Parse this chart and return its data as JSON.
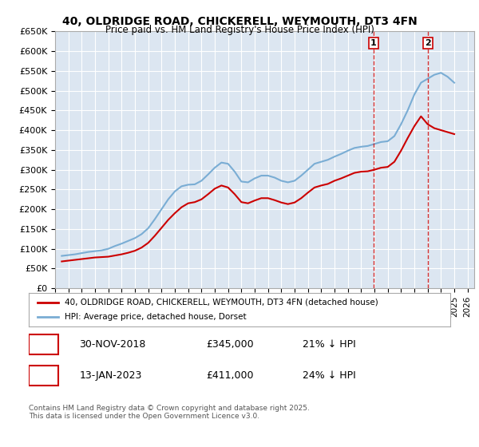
{
  "title": "40, OLDRIDGE ROAD, CHICKERELL, WEYMOUTH, DT3 4FN",
  "subtitle": "Price paid vs. HM Land Registry's House Price Index (HPI)",
  "ylabel": "",
  "background_color": "#ffffff",
  "plot_bg_color": "#dce6f1",
  "grid_color": "#ffffff",
  "hpi_color": "#7aadd4",
  "price_color": "#cc0000",
  "marker_line_color": "#cc0000",
  "ylim": [
    0,
    650000
  ],
  "yticks": [
    0,
    50000,
    100000,
    150000,
    200000,
    250000,
    300000,
    350000,
    400000,
    450000,
    500000,
    550000,
    600000,
    650000
  ],
  "ytick_labels": [
    "£0",
    "£50K",
    "£100K",
    "£150K",
    "£200K",
    "£250K",
    "£300K",
    "£350K",
    "£400K",
    "£450K",
    "£500K",
    "£550K",
    "£600K",
    "£650K"
  ],
  "xlim_start": 1995.0,
  "xlim_end": 2026.5,
  "transactions": [
    {
      "label": "1",
      "date": "30-NOV-2018",
      "price": 345000,
      "note": "21% ↓ HPI",
      "year": 2018.92
    },
    {
      "label": "2",
      "date": "13-JAN-2023",
      "price": 411000,
      "note": "24% ↓ HPI",
      "year": 2023.04
    }
  ],
  "legend_entries": [
    {
      "label": "40, OLDRIDGE ROAD, CHICKERELL, WEYMOUTH, DT3 4FN (detached house)",
      "color": "#cc0000"
    },
    {
      "label": "HPI: Average price, detached house, Dorset",
      "color": "#7aadd4"
    }
  ],
  "footnote": "Contains HM Land Registry data © Crown copyright and database right 2025.\nThis data is licensed under the Open Government Licence v3.0.",
  "hpi_data": {
    "years": [
      1995.5,
      1996.0,
      1996.5,
      1997.0,
      1997.5,
      1998.0,
      1998.5,
      1999.0,
      1999.5,
      2000.0,
      2000.5,
      2001.0,
      2001.5,
      2002.0,
      2002.5,
      2003.0,
      2003.5,
      2004.0,
      2004.5,
      2005.0,
      2005.5,
      2006.0,
      2006.5,
      2007.0,
      2007.5,
      2008.0,
      2008.5,
      2009.0,
      2009.5,
      2010.0,
      2010.5,
      2011.0,
      2011.5,
      2012.0,
      2012.5,
      2013.0,
      2013.5,
      2014.0,
      2014.5,
      2015.0,
      2015.5,
      2016.0,
      2016.5,
      2017.0,
      2017.5,
      2018.0,
      2018.5,
      2019.0,
      2019.5,
      2020.0,
      2020.5,
      2021.0,
      2021.5,
      2022.0,
      2022.5,
      2023.0,
      2023.5,
      2024.0,
      2024.5,
      2025.0
    ],
    "values": [
      82000,
      84000,
      86000,
      89000,
      92000,
      94000,
      96000,
      100000,
      107000,
      113000,
      120000,
      127000,
      137000,
      152000,
      175000,
      200000,
      225000,
      245000,
      258000,
      262000,
      263000,
      272000,
      288000,
      305000,
      318000,
      315000,
      295000,
      270000,
      268000,
      278000,
      285000,
      285000,
      280000,
      272000,
      268000,
      272000,
      285000,
      300000,
      315000,
      320000,
      325000,
      333000,
      340000,
      348000,
      355000,
      358000,
      360000,
      365000,
      370000,
      372000,
      385000,
      415000,
      450000,
      490000,
      520000,
      530000,
      540000,
      545000,
      535000,
      520000
    ]
  },
  "price_data": {
    "years": [
      1995.5,
      1996.0,
      1996.5,
      1997.0,
      1997.5,
      1998.0,
      1998.5,
      1999.0,
      1999.5,
      2000.0,
      2000.5,
      2001.0,
      2001.5,
      2002.0,
      2002.5,
      2003.0,
      2003.5,
      2004.0,
      2004.5,
      2005.0,
      2005.5,
      2006.0,
      2006.5,
      2007.0,
      2007.5,
      2008.0,
      2008.5,
      2009.0,
      2009.5,
      2010.0,
      2010.5,
      2011.0,
      2011.5,
      2012.0,
      2012.5,
      2013.0,
      2013.5,
      2014.0,
      2014.5,
      2015.0,
      2015.5,
      2016.0,
      2016.5,
      2017.0,
      2017.5,
      2018.0,
      2018.5,
      2019.0,
      2019.5,
      2020.0,
      2020.5,
      2021.0,
      2021.5,
      2022.0,
      2022.5,
      2023.0,
      2023.5,
      2024.0,
      2024.5,
      2025.0
    ],
    "values": [
      68000,
      70000,
      72000,
      74000,
      76000,
      78000,
      79000,
      80000,
      83000,
      86000,
      90000,
      95000,
      103000,
      115000,
      133000,
      153000,
      173000,
      190000,
      205000,
      215000,
      218000,
      225000,
      238000,
      252000,
      260000,
      255000,
      238000,
      218000,
      215000,
      222000,
      228000,
      228000,
      223000,
      217000,
      213000,
      217000,
      228000,
      242000,
      255000,
      260000,
      264000,
      272000,
      278000,
      285000,
      292000,
      295000,
      296000,
      300000,
      305000,
      307000,
      320000,
      348000,
      380000,
      410000,
      435000,
      415000,
      405000,
      400000,
      395000,
      390000
    ]
  }
}
